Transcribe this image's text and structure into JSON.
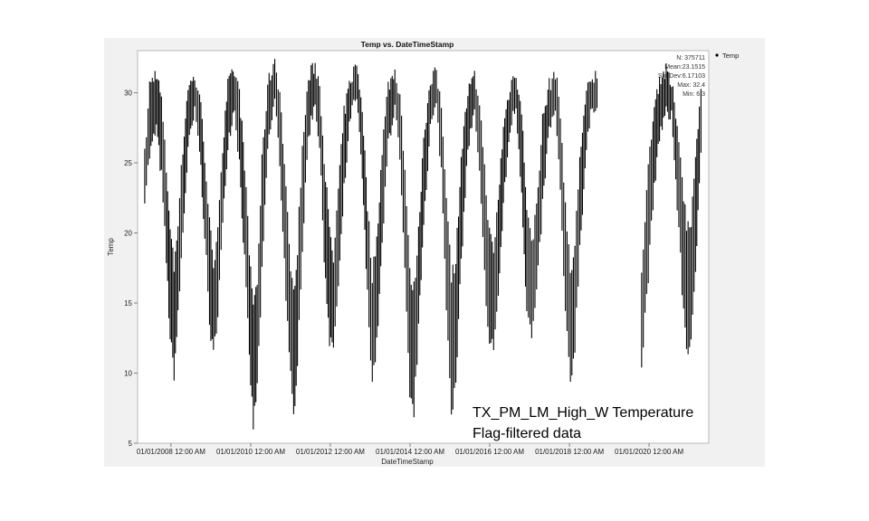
{
  "chart_data": {
    "type": "scatter",
    "title": "Temp vs. DateTimeStamp",
    "xlabel": "DateTimeStamp",
    "ylabel": "Temp",
    "ylim": [
      5,
      33
    ],
    "y_ticks": [
      5,
      10,
      15,
      20,
      25,
      30
    ],
    "xlim": [
      "2007-03-01",
      "2021-07-01"
    ],
    "x_ticks": [
      {
        "date": "2008-01-01",
        "label": "01/01/2008 12:00 AM"
      },
      {
        "date": "2010-01-01",
        "label": "01/01/2010 12:00 AM"
      },
      {
        "date": "2012-01-01",
        "label": "01/01/2012 12:00 AM"
      },
      {
        "date": "2014-01-01",
        "label": "01/01/2014 12:00 AM"
      },
      {
        "date": "2016-01-01",
        "label": "01/01/2016 12:00 AM"
      },
      {
        "date": "2018-01-01",
        "label": "01/01/2018 12:00 AM"
      },
      {
        "date": "2020-01-01",
        "label": "01/01/2020 12:00 AM"
      }
    ],
    "grid": false,
    "legend_position": "top-right-outside",
    "marker_color": "#000000",
    "series": [
      {
        "name": "Temp",
        "envelope": [
          {
            "x": "2007-05-01",
            "low": 22.7,
            "high": 25.5
          },
          {
            "x": "2007-06-15",
            "low": 25.5,
            "high": 30.5
          },
          {
            "x": "2007-08-15",
            "low": 27.5,
            "high": 31.5
          },
          {
            "x": "2007-10-01",
            "low": 24.0,
            "high": 29.5
          },
          {
            "x": "2007-11-15",
            "low": 18.0,
            "high": 24.5
          },
          {
            "x": "2007-12-20",
            "low": 12.5,
            "high": 20.5
          },
          {
            "x": "2008-01-25",
            "low": 10.0,
            "high": 17.5
          },
          {
            "x": "2008-03-01",
            "low": 14.0,
            "high": 21.0
          },
          {
            "x": "2008-04-15",
            "low": 20.0,
            "high": 26.0
          },
          {
            "x": "2008-06-01",
            "low": 26.0,
            "high": 30.5
          },
          {
            "x": "2008-08-01",
            "low": 28.5,
            "high": 31.0
          },
          {
            "x": "2008-09-15",
            "low": 26.0,
            "high": 30.0
          },
          {
            "x": "2008-11-01",
            "low": 20.0,
            "high": 25.5
          },
          {
            "x": "2008-12-15",
            "low": 13.5,
            "high": 21.0
          },
          {
            "x": "2009-01-20",
            "low": 11.2,
            "high": 17.0
          },
          {
            "x": "2009-03-01",
            "low": 14.5,
            "high": 21.0
          },
          {
            "x": "2009-04-15",
            "low": 20.5,
            "high": 26.0
          },
          {
            "x": "2009-06-01",
            "low": 26.5,
            "high": 30.5
          },
          {
            "x": "2009-08-01",
            "low": 29.0,
            "high": 31.5
          },
          {
            "x": "2009-09-15",
            "low": 25.0,
            "high": 30.0
          },
          {
            "x": "2009-11-01",
            "low": 18.0,
            "high": 25.0
          },
          {
            "x": "2009-12-15",
            "low": 11.0,
            "high": 18.5
          },
          {
            "x": "2010-01-20",
            "low": 6.3,
            "high": 15.0
          },
          {
            "x": "2010-02-25",
            "low": 9.0,
            "high": 16.5
          },
          {
            "x": "2010-04-10",
            "low": 17.0,
            "high": 25.0
          },
          {
            "x": "2010-06-01",
            "low": 26.0,
            "high": 30.5
          },
          {
            "x": "2010-08-05",
            "low": 29.5,
            "high": 32.4
          },
          {
            "x": "2010-09-20",
            "low": 25.0,
            "high": 30.0
          },
          {
            "x": "2010-11-01",
            "low": 18.0,
            "high": 25.0
          },
          {
            "x": "2010-12-15",
            "low": 11.0,
            "high": 19.0
          },
          {
            "x": "2011-01-25",
            "low": 6.8,
            "high": 15.5
          },
          {
            "x": "2011-03-01",
            "low": 11.0,
            "high": 19.0
          },
          {
            "x": "2011-04-15",
            "low": 19.0,
            "high": 26.0
          },
          {
            "x": "2011-06-10",
            "low": 27.0,
            "high": 31.0
          },
          {
            "x": "2011-08-10",
            "low": 29.5,
            "high": 32.0
          },
          {
            "x": "2011-09-20",
            "low": 26.0,
            "high": 30.5
          },
          {
            "x": "2011-11-01",
            "low": 18.5,
            "high": 25.5
          },
          {
            "x": "2011-12-20",
            "low": 12.0,
            "high": 20.0
          },
          {
            "x": "2012-01-25",
            "low": 12.0,
            "high": 18.0
          },
          {
            "x": "2012-03-10",
            "low": 16.0,
            "high": 23.0
          },
          {
            "x": "2012-05-01",
            "low": 23.0,
            "high": 28.5
          },
          {
            "x": "2012-07-01",
            "low": 28.5,
            "high": 31.0
          },
          {
            "x": "2012-08-25",
            "low": 29.5,
            "high": 32.0
          },
          {
            "x": "2012-10-15",
            "low": 24.0,
            "high": 29.0
          },
          {
            "x": "2012-12-01",
            "low": 15.5,
            "high": 22.0
          },
          {
            "x": "2013-01-15",
            "low": 9.5,
            "high": 17.0
          },
          {
            "x": "2013-02-25",
            "low": 12.0,
            "high": 19.5
          },
          {
            "x": "2013-04-15",
            "low": 19.0,
            "high": 26.0
          },
          {
            "x": "2013-06-10",
            "low": 26.5,
            "high": 30.5
          },
          {
            "x": "2013-08-10",
            "low": 29.0,
            "high": 31.5
          },
          {
            "x": "2013-09-25",
            "low": 25.0,
            "high": 30.0
          },
          {
            "x": "2013-11-10",
            "low": 17.0,
            "high": 24.5
          },
          {
            "x": "2013-12-25",
            "low": 8.0,
            "high": 17.0
          },
          {
            "x": "2014-02-01",
            "low": 7.3,
            "high": 16.0
          },
          {
            "x": "2014-03-15",
            "low": 13.0,
            "high": 20.0
          },
          {
            "x": "2014-05-01",
            "low": 21.0,
            "high": 27.0
          },
          {
            "x": "2014-07-01",
            "low": 27.5,
            "high": 30.5
          },
          {
            "x": "2014-08-25",
            "low": 29.0,
            "high": 31.5
          },
          {
            "x": "2014-10-10",
            "low": 24.5,
            "high": 29.0
          },
          {
            "x": "2014-11-25",
            "low": 15.0,
            "high": 23.0
          },
          {
            "x": "2015-01-10",
            "low": 7.5,
            "high": 17.0
          },
          {
            "x": "2015-02-20",
            "low": 9.0,
            "high": 18.0
          },
          {
            "x": "2015-04-10",
            "low": 18.0,
            "high": 25.5
          },
          {
            "x": "2015-06-10",
            "low": 26.0,
            "high": 30.0
          },
          {
            "x": "2015-08-10",
            "low": 28.5,
            "high": 31.0
          },
          {
            "x": "2015-09-25",
            "low": 24.0,
            "high": 29.5
          },
          {
            "x": "2015-11-10",
            "low": 17.0,
            "high": 24.5
          },
          {
            "x": "2015-12-25",
            "low": 12.0,
            "high": 20.0
          },
          {
            "x": "2016-02-01",
            "low": 12.0,
            "high": 18.5
          },
          {
            "x": "2016-03-15",
            "low": 15.5,
            "high": 22.5
          },
          {
            "x": "2016-05-01",
            "low": 22.0,
            "high": 27.5
          },
          {
            "x": "2016-07-01",
            "low": 27.5,
            "high": 30.5
          },
          {
            "x": "2016-08-25",
            "low": 29.0,
            "high": 31.5
          },
          {
            "x": "2016-10-15",
            "low": 23.0,
            "high": 28.5
          },
          {
            "x": "2016-12-01",
            "low": 14.5,
            "high": 22.0
          },
          {
            "x": "2017-01-15",
            "low": 12.5,
            "high": 19.0
          },
          {
            "x": "2017-03-01",
            "low": 15.5,
            "high": 22.0
          },
          {
            "x": "2017-04-25",
            "low": 22.0,
            "high": 28.0
          },
          {
            "x": "2017-06-25",
            "low": 27.5,
            "high": 30.5
          },
          {
            "x": "2017-08-20",
            "low": 28.5,
            "high": 31.5
          },
          {
            "x": "2017-10-05",
            "low": 23.0,
            "high": 28.5
          },
          {
            "x": "2017-11-20",
            "low": 14.0,
            "high": 22.0
          },
          {
            "x": "2018-01-05",
            "low": 9.3,
            "high": 17.0
          },
          {
            "x": "2018-02-15",
            "low": 12.0,
            "high": 19.0
          },
          {
            "x": "2018-04-01",
            "low": 19.0,
            "high": 25.5
          },
          {
            "x": "2018-06-01",
            "low": 26.0,
            "high": 30.0
          },
          {
            "x": "2018-07-25",
            "low": 29.0,
            "high": 30.8
          },
          {
            "x": "2018-09-20",
            "low": 29.5,
            "high": 31.5
          },
          {
            "gap": true
          },
          {
            "x": "2019-10-20",
            "low": 10.2,
            "high": 17.5
          },
          {
            "x": "2019-11-20",
            "low": 14.0,
            "high": 21.0
          },
          {
            "x": "2019-12-20",
            "low": 17.0,
            "high": 24.5
          },
          {
            "x": "2020-02-01",
            "low": 22.0,
            "high": 28.5
          },
          {
            "x": "2020-04-01",
            "low": 27.0,
            "high": 31.0
          },
          {
            "x": "2020-06-01",
            "low": 28.5,
            "high": 31.5
          },
          {
            "x": "2020-07-20",
            "low": 28.5,
            "high": 30.5
          },
          {
            "x": "2020-09-10",
            "low": 22.0,
            "high": 28.0
          },
          {
            "x": "2020-10-25",
            "low": 16.0,
            "high": 24.0
          },
          {
            "x": "2020-12-05",
            "low": 11.8,
            "high": 20.5
          },
          {
            "x": "2021-01-15",
            "low": 12.0,
            "high": 21.0
          },
          {
            "x": "2021-02-25",
            "low": 17.0,
            "high": 25.0
          },
          {
            "x": "2021-04-01",
            "low": 24.0,
            "high": 29.5
          },
          {
            "x": "2021-05-01",
            "low": 28.5,
            "high": 31.0
          }
        ]
      }
    ],
    "stats": {
      "n_label": "N: 375711",
      "mean_label": "Mean:23.1515",
      "std_label": "Std Dev:6.17103",
      "max_label": "Max: 32.4",
      "min_label": "Min: 6.3"
    },
    "legend": {
      "entries": [
        "Temp"
      ]
    }
  },
  "annotation": {
    "line1": "TX_PM_LM_High_W Temperature",
    "line2": "Flag-filtered data"
  }
}
